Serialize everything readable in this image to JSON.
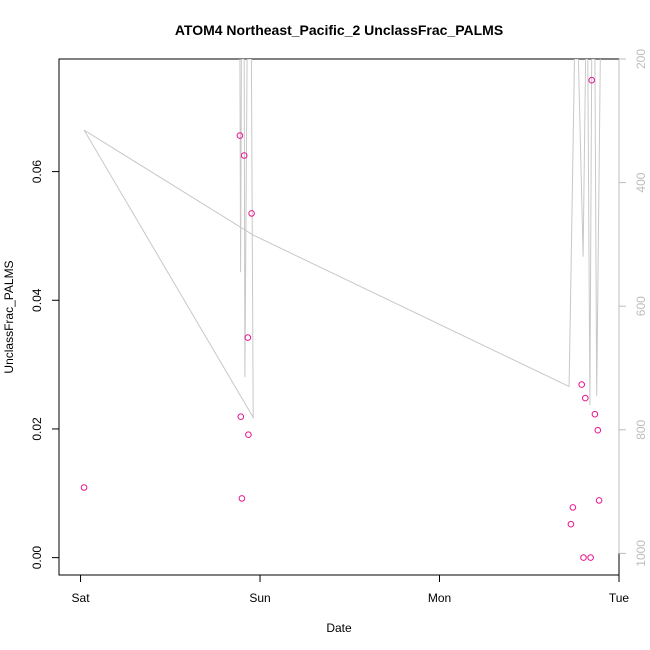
{
  "chart_data": {
    "type": "scatter",
    "title": "ATOM4 Northeast_Pacific_2 UnclassFrac_PALMS",
    "xlabel": "Date",
    "ylabel": "UnclassFrac_PALMS",
    "x_ticks": [
      {
        "day": 0,
        "label": "Sat"
      },
      {
        "day": 1,
        "label": "Sun"
      },
      {
        "day": 2,
        "label": "Mon"
      },
      {
        "day": 3,
        "label": "Tue"
      }
    ],
    "xlim_days": [
      -0.12,
      3.0
    ],
    "ylim": [
      -0.0027,
      0.0775
    ],
    "y_ticks": [
      0.0,
      0.02,
      0.04,
      0.06
    ],
    "y_tick_labels": [
      "0.00",
      "0.02",
      "0.04",
      "0.06"
    ],
    "right_axis": {
      "reversed": true,
      "range": [
        1035,
        200
      ],
      "ticks": [
        200,
        400,
        600,
        800,
        1000
      ],
      "tick_labels": [
        "200",
        "400",
        "600",
        "800",
        "1000"
      ],
      "color": "#bdbdbd"
    },
    "points_color": "#e8158f",
    "points": [
      {
        "x": 0.02,
        "y": 0.0109
      },
      {
        "x": 0.888,
        "y": 0.0656
      },
      {
        "x": 0.893,
        "y": 0.0219
      },
      {
        "x": 0.899,
        "y": 0.0092
      },
      {
        "x": 0.912,
        "y": 0.0625
      },
      {
        "x": 0.932,
        "y": 0.0342
      },
      {
        "x": 0.935,
        "y": 0.0191
      },
      {
        "x": 0.953,
        "y": 0.0535
      },
      {
        "x": 2.732,
        "y": 0.0052
      },
      {
        "x": 2.743,
        "y": 0.0078
      },
      {
        "x": 2.792,
        "y": 0.0269
      },
      {
        "x": 2.802,
        "y": 0.0
      },
      {
        "x": 2.812,
        "y": 0.0248
      },
      {
        "x": 2.842,
        "y": 0.0
      },
      {
        "x": 2.848,
        "y": 0.0742
      },
      {
        "x": 2.866,
        "y": 0.0223
      },
      {
        "x": 2.882,
        "y": 0.0198
      },
      {
        "x": 2.889,
        "y": 0.0089
      }
    ],
    "line_color": "#c8c8c8",
    "line_series": [
      {
        "x": 0.02,
        "y": 315
      },
      {
        "x": 0.962,
        "y": 485
      },
      {
        "x": 2.722,
        "y": 730
      },
      {
        "x": 2.752,
        "y": 200
      },
      {
        "x": 2.774,
        "y": 200
      },
      {
        "x": 2.8,
        "y": 520
      },
      {
        "x": 2.814,
        "y": 200
      },
      {
        "x": 2.826,
        "y": 200
      },
      {
        "x": 2.838,
        "y": 760
      },
      {
        "x": 2.848,
        "y": 200
      },
      {
        "x": 2.866,
        "y": 200
      },
      {
        "x": 2.876,
        "y": 745
      },
      {
        "x": 2.896,
        "y": 200
      }
    ],
    "line_series_2": [
      {
        "x": 0.02,
        "y": 315
      },
      {
        "x": 0.962,
        "y": 780
      },
      {
        "x": 0.952,
        "y": 200
      },
      {
        "x": 0.928,
        "y": 200
      },
      {
        "x": 0.916,
        "y": 715
      },
      {
        "x": 0.912,
        "y": 200
      },
      {
        "x": 0.896,
        "y": 200
      },
      {
        "x": 0.892,
        "y": 545
      },
      {
        "x": 0.888,
        "y": 200
      }
    ]
  }
}
